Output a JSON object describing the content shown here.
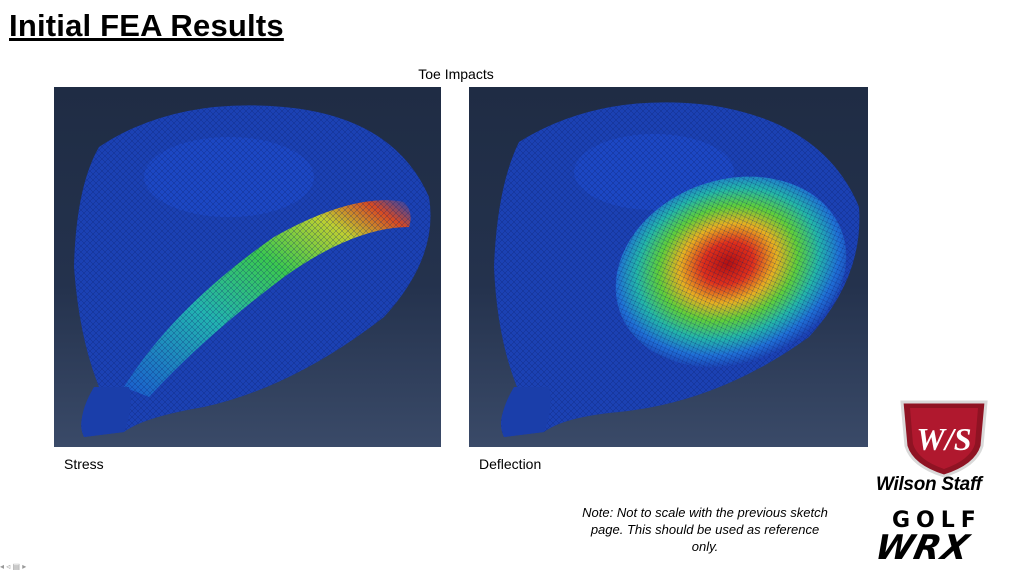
{
  "slide": {
    "title": "Initial FEA Results",
    "subtitle": "Toe Impacts",
    "left_caption": "Stress",
    "right_caption": "Deflection",
    "note": "Note: Not to scale with the previous sketch page. This should be used as reference only."
  },
  "logos": {
    "ws_badge": "W/S",
    "wilson_staff": "Wilson Staff",
    "golf": "GOLF",
    "wrx": "WRX"
  },
  "nav": {
    "glyphs": "◂ ◃ ▤ ▸"
  },
  "colors": {
    "panel_bg": "#24324d",
    "mesh_blue": "#1a3fb0",
    "hot_red": "#d01818",
    "badge_red": "#a8172a"
  }
}
